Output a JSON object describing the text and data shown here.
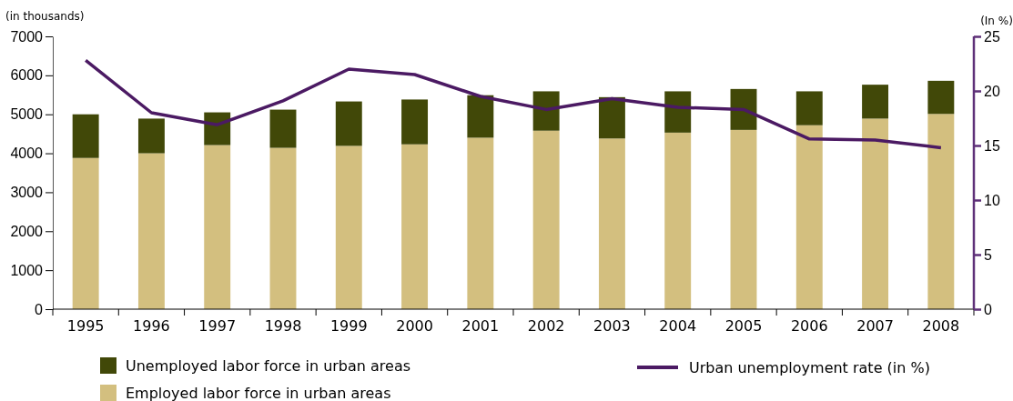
{
  "chart_data": {
    "type": "bar",
    "stacked": true,
    "ylabel": "(in thousands)",
    "y2label": "(In %)",
    "categories": [
      "1995",
      "1996",
      "1997",
      "1998",
      "1999",
      "2000",
      "2001",
      "2002",
      "2003",
      "2004",
      "2005",
      "2006",
      "2007",
      "2008"
    ],
    "series": [
      {
        "name": "Employed labor force in urban areas",
        "color": "#d3bf7f",
        "values": [
          3880,
          4000,
          4210,
          4140,
          4190,
          4230,
          4400,
          4580,
          4380,
          4530,
          4600,
          4720,
          4890,
          5010
        ]
      },
      {
        "name": "Unemployed labor force in urban areas",
        "color": "#414808",
        "values": [
          1120,
          890,
          840,
          980,
          1140,
          1150,
          1090,
          1010,
          1060,
          1060,
          1050,
          870,
          870,
          850
        ]
      },
      {
        "name": "Urban unemployment rate (in %)",
        "type": "line",
        "axis": "y2",
        "color": "#4b1a63",
        "values": [
          22.8,
          18.0,
          16.9,
          19.1,
          22.0,
          21.5,
          19.5,
          18.3,
          19.3,
          18.5,
          18.3,
          15.6,
          15.5,
          14.8
        ]
      }
    ],
    "ylim": [
      0,
      7000
    ],
    "yticks": [
      0,
      1000,
      2000,
      3000,
      4000,
      5000,
      6000,
      7000
    ],
    "y2lim": [
      0,
      25
    ],
    "y2ticks": [
      0,
      5,
      10,
      15,
      20,
      25
    ],
    "grid": false,
    "legend": "bottom",
    "marker": "none",
    "line_style": "solid"
  }
}
